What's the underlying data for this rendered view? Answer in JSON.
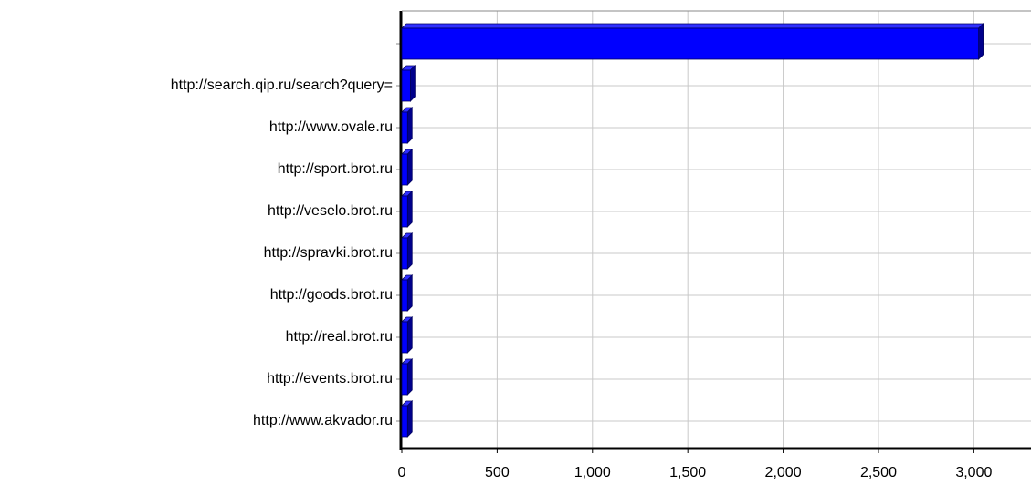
{
  "chart_data": {
    "type": "bar",
    "orientation": "horizontal",
    "categories": [
      null,
      "http://search.qip.ru/search?query=",
      "http://www.ovale.ru",
      "http://sport.brot.ru",
      "http://veselo.brot.ru",
      "http://spravki.brot.ru",
      "http://goods.brot.ru",
      "http://real.brot.ru",
      "http://events.brot.ru",
      "http://www.akvador.ru"
    ],
    "values": [
      3025,
      45,
      30,
      30,
      30,
      30,
      30,
      30,
      30,
      30
    ],
    "color": "#0000ff",
    "xlim": [
      0,
      3300
    ],
    "xticks": [
      0,
      500,
      {
        "value": 1000,
        "label": "1,000"
      },
      {
        "value": 1500,
        "label": "1,500"
      },
      {
        "value": 2000,
        "label": "2,000"
      },
      {
        "value": 2500,
        "label": "2,500"
      },
      {
        "value": 3000,
        "label": "3,000"
      }
    ],
    "grid": true
  }
}
